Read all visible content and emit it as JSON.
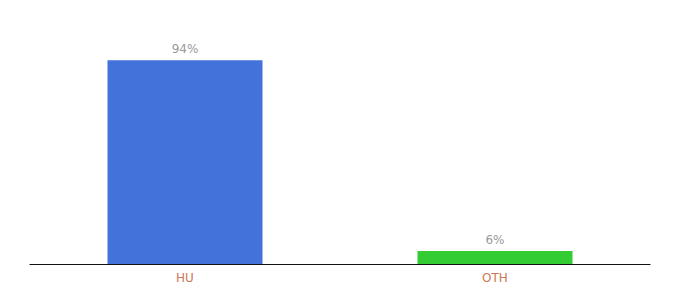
{
  "chart_data": {
    "type": "bar",
    "categories": [
      "HU",
      "OTH"
    ],
    "values": [
      94,
      6
    ],
    "value_labels": [
      "94%",
      "6%"
    ],
    "data_labels": true,
    "colors": [
      "#4472db",
      "#33cc33"
    ],
    "ylim": [
      0,
      108
    ],
    "grid": false,
    "tick_labels": "x"
  }
}
